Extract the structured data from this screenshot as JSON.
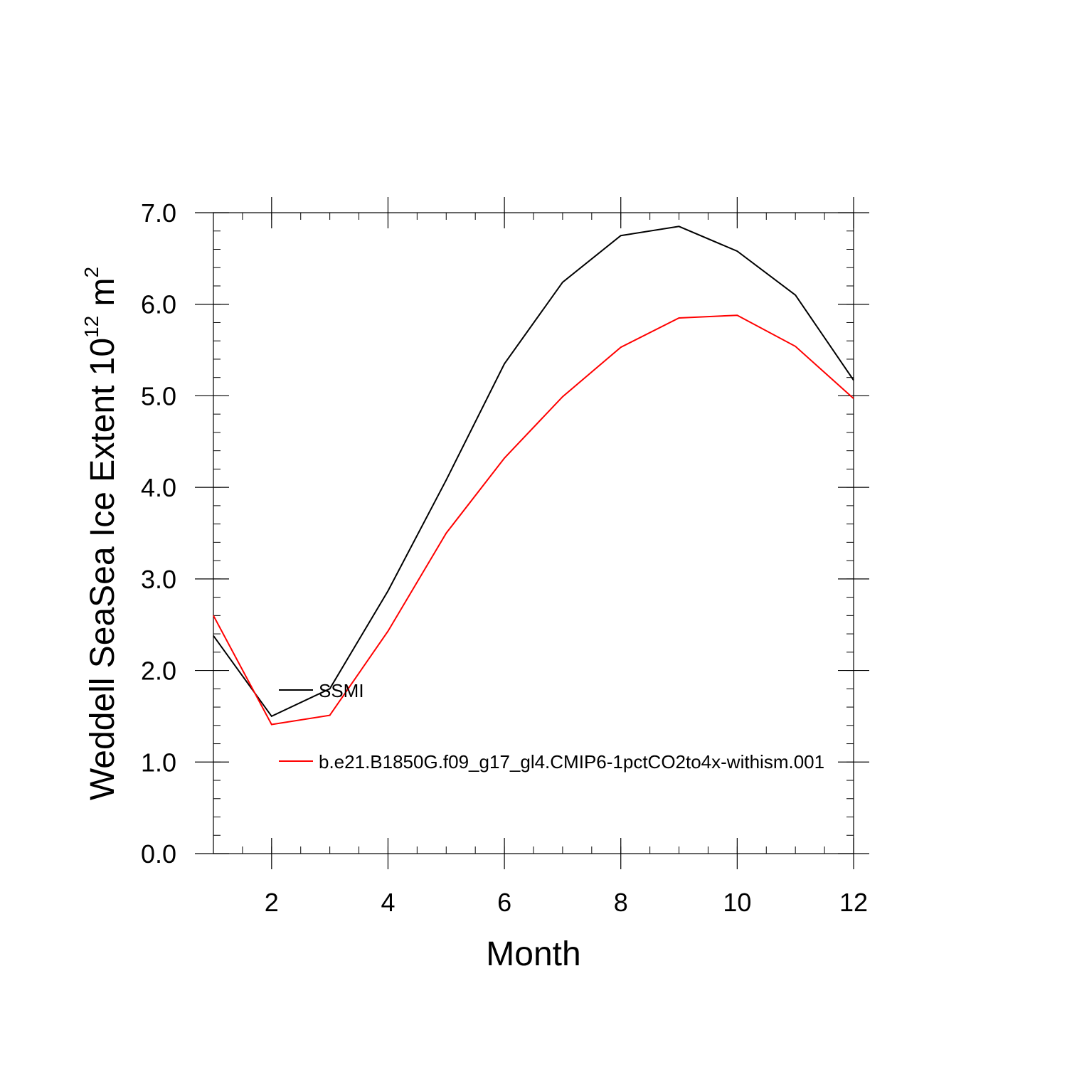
{
  "chart_data": {
    "type": "line",
    "title": "",
    "xlabel": "Month",
    "ylabel": "Weddell SeaSea Ice Extent 10",
    "ylabel_sup1": "12",
    "ylabel_unit": " m",
    "ylabel_sup2": "2",
    "xlim": [
      1,
      12
    ],
    "ylim": [
      0.0,
      7.0
    ],
    "x_ticks": [
      2,
      4,
      6,
      8,
      10,
      12
    ],
    "x_tick_labels": [
      "2",
      "4",
      "6",
      "8",
      "10",
      "12"
    ],
    "y_ticks": [
      0.0,
      1.0,
      2.0,
      3.0,
      4.0,
      5.0,
      6.0,
      7.0
    ],
    "y_tick_labels": [
      "0.0",
      "1.0",
      "2.0",
      "3.0",
      "4.0",
      "5.0",
      "6.0",
      "7.0"
    ],
    "grid": false,
    "legend_position": "inside-lower-left",
    "x": [
      1,
      2,
      3,
      4,
      5,
      6,
      7,
      8,
      9,
      10,
      11,
      12
    ],
    "series": [
      {
        "name": "SSMI",
        "color": "#000000",
        "values": [
          2.38,
          1.5,
          1.8,
          2.87,
          4.08,
          5.35,
          6.24,
          6.75,
          6.85,
          6.58,
          6.1,
          5.17
        ]
      },
      {
        "name": "b.e21.B1850G.f09_g17_gl4.CMIP6-1pctCO2to4x-withism.001",
        "color": "#ff0000",
        "values": [
          2.6,
          1.41,
          1.51,
          2.43,
          3.5,
          4.32,
          4.99,
          5.53,
          5.85,
          5.88,
          5.54,
          4.97
        ]
      }
    ]
  }
}
